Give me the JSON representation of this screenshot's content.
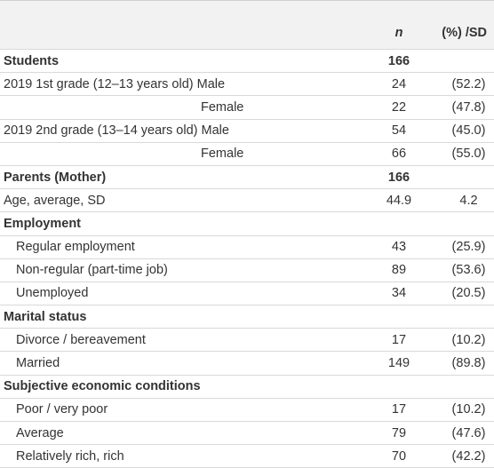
{
  "table": {
    "header": [
      "n",
      "(%) /SD"
    ],
    "rows": [
      [
        "Students",
        166,
        null
      ],
      [
        "2019 1st grade (12–13 years old) Male",
        24,
        "(52.2)"
      ],
      [
        "Female",
        22,
        "(47.8)"
      ],
      [
        "2019 2nd grade (13–14 years old) Male",
        54,
        "(45.0)"
      ],
      [
        "Female",
        66,
        "(55.0)"
      ],
      [
        "Parents (Mother)",
        166,
        null
      ],
      [
        "Age, average, SD",
        44.9,
        4.2
      ],
      [
        "Employment",
        null,
        null
      ],
      [
        "Regular employment",
        43,
        "(25.9)"
      ],
      [
        "Non-regular (part-time job)",
        89,
        "(53.6)"
      ],
      [
        "Unemployed",
        34,
        "(20.5)"
      ],
      [
        "Marital status",
        null,
        null
      ],
      [
        "Divorce / bereavement",
        17,
        "(10.2)"
      ],
      [
        "Married",
        149,
        "(89.8)"
      ],
      [
        "Subjective economic conditions",
        null,
        null
      ],
      [
        "Poor / very poor",
        17,
        "(10.2)"
      ],
      [
        "Average",
        79,
        "(47.6)"
      ],
      [
        "Relatively rich, rich",
        70,
        "(42.2)"
      ]
    ]
  }
}
